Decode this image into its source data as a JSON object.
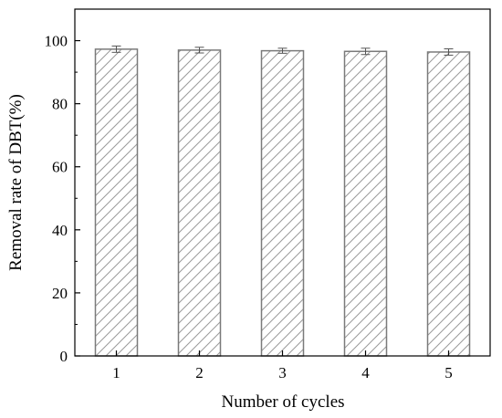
{
  "chart_data": {
    "type": "bar",
    "title": "",
    "xlabel": "Number of cycles",
    "ylabel": "Removal rate of DBT(%)",
    "categories": [
      "1",
      "2",
      "3",
      "4",
      "5"
    ],
    "series": [
      {
        "values": [
          97.3,
          97.0,
          96.8,
          96.6,
          96.4
        ],
        "errors": [
          1.0,
          0.9,
          0.8,
          1.0,
          1.0
        ]
      }
    ],
    "ylim": [
      0,
      110
    ],
    "yticks": [
      0,
      20,
      40,
      60,
      80,
      100
    ],
    "grid": false,
    "bar_fill": "hatched",
    "colors": {
      "bar_edge": "#7a7a7a",
      "hatch": "#9a9a9a",
      "axis": "#000000"
    }
  }
}
